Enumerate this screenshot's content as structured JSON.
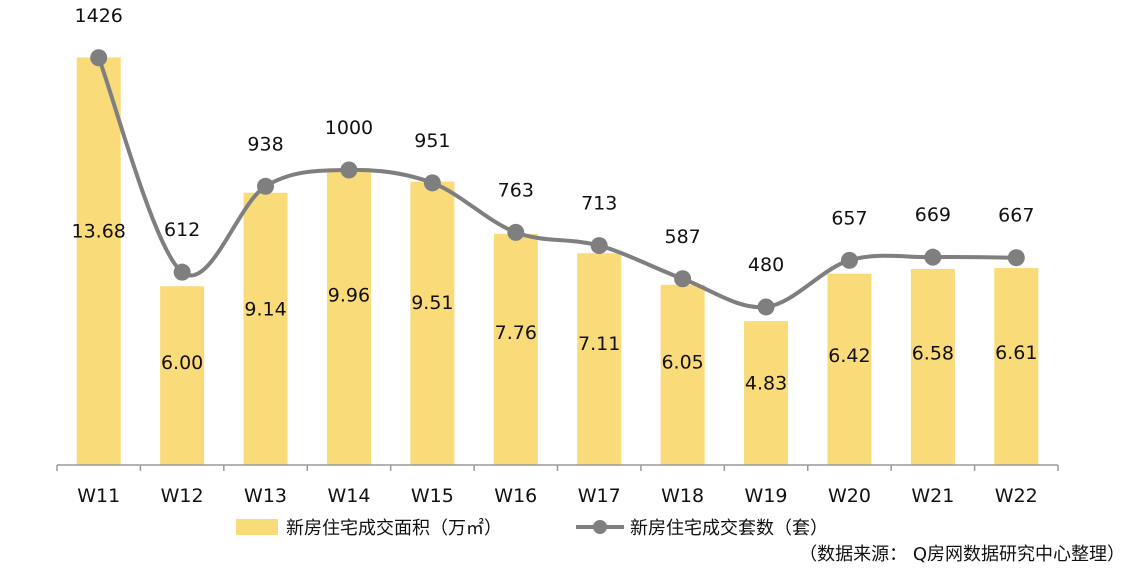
{
  "chart_data": {
    "type": "bar",
    "categories": [
      "W11",
      "W12",
      "W13",
      "W14",
      "W15",
      "W16",
      "W17",
      "W18",
      "W19",
      "W20",
      "W21",
      "W22"
    ],
    "series": [
      {
        "name": "新房住宅成交面积（万㎡）",
        "type": "bar",
        "axis": "left",
        "color": "#FADB7A",
        "values": [
          13.68,
          6.0,
          9.14,
          9.96,
          9.51,
          7.76,
          7.11,
          6.05,
          4.83,
          6.42,
          6.58,
          6.61
        ],
        "labels": [
          "13.68",
          "6.00",
          "9.14",
          "9.96",
          "9.51",
          "7.76",
          "7.11",
          "6.05",
          "4.83",
          "6.42",
          "6.58",
          "6.61"
        ]
      },
      {
        "name": "新房住宅成交套数（套）",
        "type": "line",
        "axis": "right",
        "smooth": true,
        "color": "#7F7F7F",
        "values": [
          1426,
          612,
          938,
          1000,
          951,
          763,
          713,
          587,
          480,
          657,
          669,
          667
        ],
        "labels": [
          "1426",
          "612",
          "938",
          "1000",
          "951",
          "763",
          "713",
          "587",
          "480",
          "657",
          "669",
          "667"
        ]
      }
    ],
    "ylim_left": [
      0,
      14.5
    ],
    "ylim_right": [
      -120,
      1520
    ],
    "grid": false,
    "legend_position": "bottom"
  },
  "legend": {
    "bar_label": "新房住宅成交面积（万㎡）",
    "line_label": "新房住宅成交套数（套）"
  },
  "source": "（数据来源： Q房网数据研究中心整理）"
}
